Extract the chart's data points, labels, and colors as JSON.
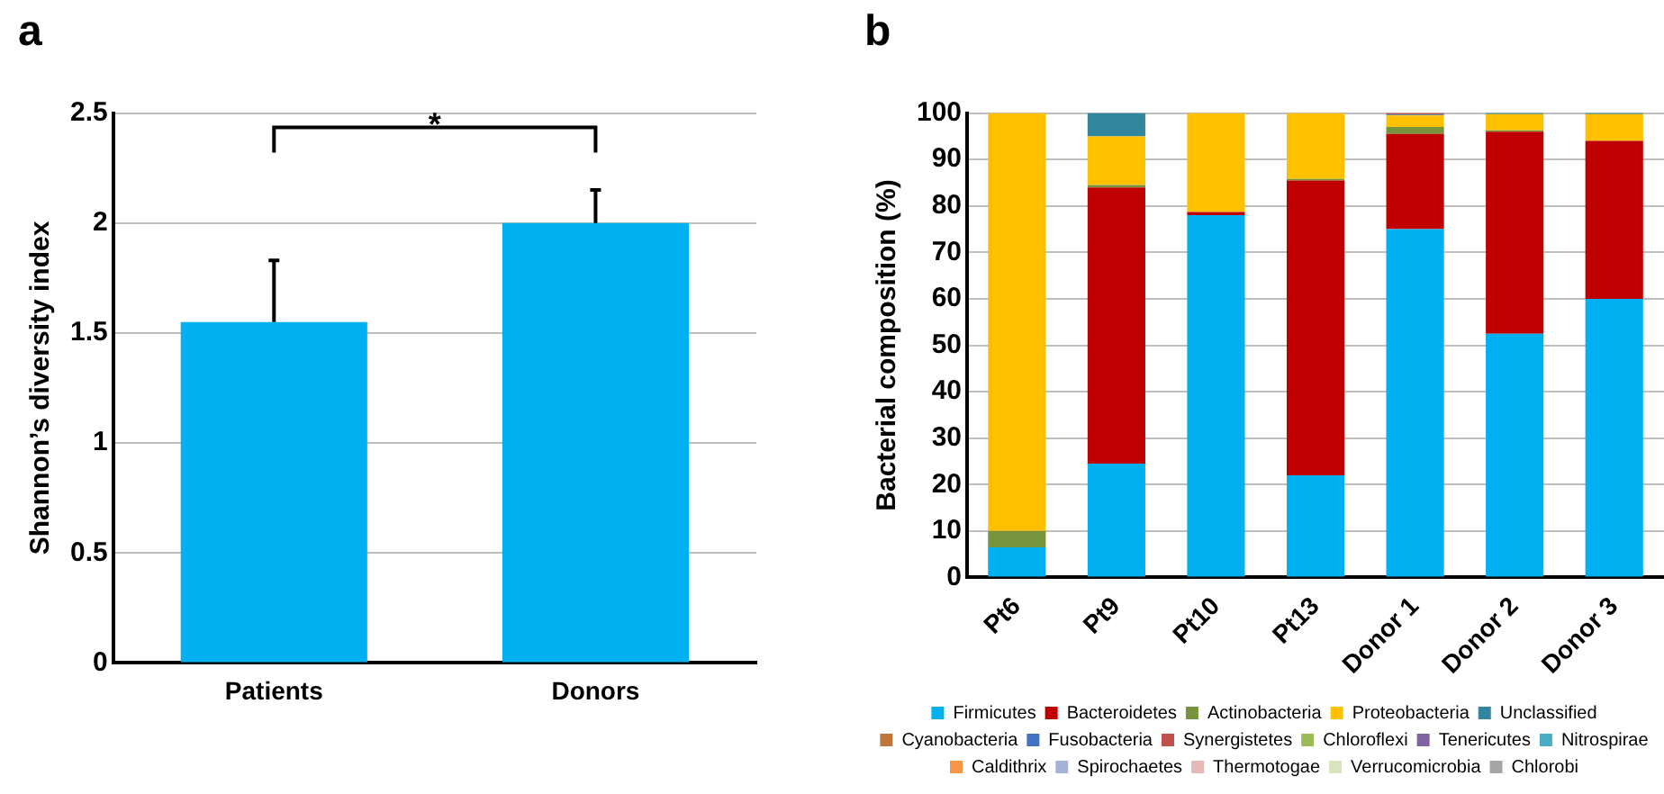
{
  "chart_data": [
    {
      "type": "bar",
      "title": "a",
      "ylabel": "Shannon’s diversity index",
      "categories": [
        "Patients",
        "Donors"
      ],
      "values": [
        1.55,
        2.0
      ],
      "color": "#00b0f0",
      "errors": [
        [
          1.55,
          1.83
        ],
        [
          2.0,
          2.15
        ]
      ],
      "ylim": [
        0,
        2.5
      ],
      "yticks": [
        0,
        0.5,
        1,
        1.5,
        2,
        2.5
      ],
      "grid": "y",
      "legend": false,
      "annotations": [
        "*"
      ]
    },
    {
      "type": "bar",
      "title": "b",
      "ylabel": "Bacterial composition (%)",
      "categories": [
        "Pt6",
        "Pt9",
        "Pt10",
        "Pt13",
        "Donor 1",
        "Donor 2",
        "Donor 3"
      ],
      "stacked": true,
      "ylim": [
        0,
        100
      ],
      "yticks": [
        0,
        10,
        20,
        30,
        40,
        50,
        60,
        70,
        80,
        90,
        100
      ],
      "grid": "y",
      "legend": "bottom",
      "series": [
        {
          "name": "Firmicutes",
          "color": "#00b0f0",
          "values": [
            6.5,
            24.5,
            78,
            22,
            75,
            52.5,
            60
          ]
        },
        {
          "name": "Bacteroidetes",
          "color": "#c00000",
          "values": [
            0,
            59.5,
            0.7,
            63.5,
            20.5,
            43.5,
            34
          ]
        },
        {
          "name": "Actinobacteria",
          "color": "#77933c",
          "values": [
            3.5,
            0.5,
            0,
            0.3,
            1.5,
            0.3,
            0
          ]
        },
        {
          "name": "Proteobacteria",
          "color": "#ffc000",
          "values": [
            90,
            10.5,
            21.3,
            14.2,
            2.5,
            3.5,
            5.8
          ]
        },
        {
          "name": "Unclassified",
          "color": "#31859c",
          "values": [
            0,
            5,
            0,
            0,
            0.2,
            0.2,
            0.2
          ]
        },
        {
          "name": "Cyanobacteria",
          "color": "#c0763a",
          "values": [
            0,
            0,
            0,
            0,
            0,
            0,
            0
          ]
        },
        {
          "name": "Fusobacteria",
          "color": "#4472c4",
          "values": [
            0,
            0,
            0,
            0,
            0,
            0,
            0
          ]
        },
        {
          "name": "Synergistetes",
          "color": "#c0504d",
          "values": [
            0,
            0,
            0,
            0,
            0.3,
            0,
            0
          ]
        },
        {
          "name": "Chloroflexi",
          "color": "#9bbb59",
          "values": [
            0,
            0,
            0,
            0,
            0,
            0,
            0
          ]
        },
        {
          "name": "Tenericutes",
          "color": "#8064a2",
          "values": [
            0,
            0,
            0,
            0,
            0,
            0,
            0
          ]
        },
        {
          "name": "Nitrospirae",
          "color": "#4bacc6",
          "values": [
            0,
            0,
            0,
            0,
            0,
            0,
            0
          ]
        },
        {
          "name": "Caldithrix",
          "color": "#f79646",
          "values": [
            0,
            0,
            0,
            0,
            0,
            0,
            0
          ]
        },
        {
          "name": "Spirochaetes",
          "color": "#a5b4d6",
          "values": [
            0,
            0,
            0,
            0,
            0,
            0,
            0
          ]
        },
        {
          "name": "Thermotogae",
          "color": "#e6b9b8",
          "values": [
            0,
            0,
            0,
            0,
            0,
            0,
            0
          ]
        },
        {
          "name": "Verrucomicrobia",
          "color": "#d7e4bd",
          "values": [
            0,
            0,
            0,
            0,
            0,
            0,
            0
          ]
        },
        {
          "name": "Chlorobi",
          "color": "#a6a6a6",
          "values": [
            0,
            0,
            0,
            0,
            0,
            0,
            0
          ]
        }
      ]
    }
  ]
}
